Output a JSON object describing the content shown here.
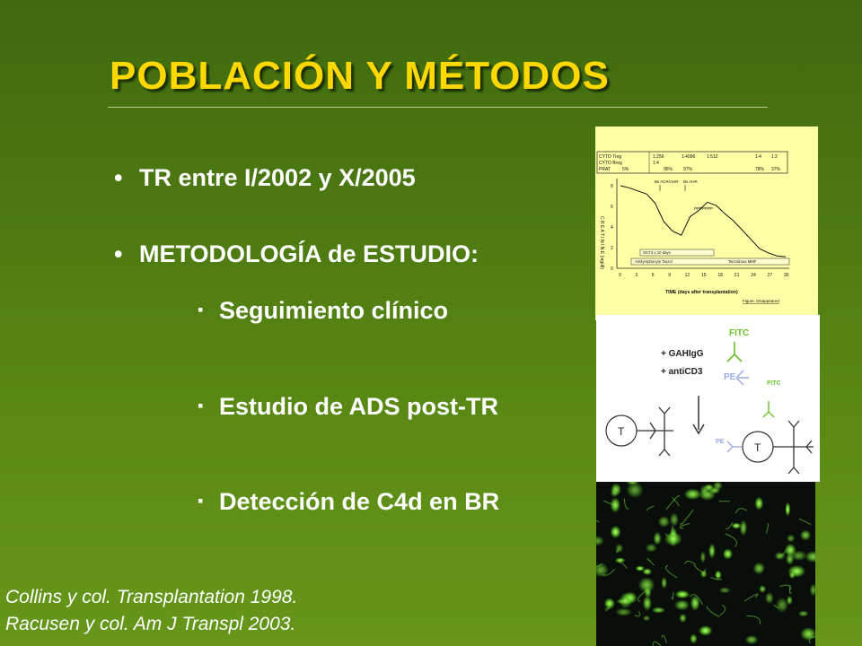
{
  "slide": {
    "title": "POBLACIÓN Y MÉTODOS",
    "bullets": [
      {
        "marker": "•",
        "text": "TR entre I/2002 y X/2005"
      },
      {
        "marker": "•",
        "text": "METODOLOGÍA de ESTUDIO:"
      }
    ],
    "sub_items": [
      {
        "marker": "▪",
        "text": "Seguimiento clínico"
      },
      {
        "marker": "▪",
        "text": "Estudio de ADS post-TR"
      },
      {
        "marker": "▪",
        "text": "Detección de C4d en BR"
      }
    ],
    "references": [
      "Collins y col. Transplantation 1998.",
      "Racusen y col. Am J Transpl 2003."
    ],
    "title_color": "#ffd800",
    "text_color": "#ffffff"
  },
  "figure_creatinine": {
    "table_rows": [
      {
        "c0": "CYTO Treg",
        "c1": "1:256",
        "c2": "1:4096",
        "c3": "1:512",
        "c4": "1:4",
        "c5": "1:2"
      },
      {
        "c0": "CYTO Breg",
        "c1": "1:4",
        "c2": "",
        "c3": "",
        "c4": "",
        "c5": ""
      },
      {
        "c0": "PRAT",
        "c1": "5%",
        "c2": "95%",
        "c3": "97%",
        "c4": "78%",
        "c5": "37%"
      }
    ],
    "ylabel": "C R E A T I N I N E   (mg/dl)",
    "y_ticks": [
      "8",
      "6",
      "4",
      "2",
      "0"
    ],
    "x_ticks": [
      "0",
      "3",
      "6",
      "9",
      "12",
      "15",
      "18",
      "21",
      "24",
      "27",
      "30"
    ],
    "xlabel": "TIME (days after transplantation)",
    "annotation_top": "Bx ACR/AHR",
    "annotation_top2": "Bx AHR",
    "annotation_plasma": "PPPPPPP",
    "treatment_bar": "Antilymphocyte    Tacrol",
    "treatment_bar2": "Tacrolimus    MMF",
    "treatment_bar_mid": "OKT3 x 10 days",
    "corner_note": "Figure. Disappeared",
    "creatinine_values": [
      8.0,
      7.8,
      7.5,
      7.2,
      6.3,
      4.5,
      3.6,
      3.2,
      5.0,
      5.6,
      6.4,
      6.1,
      5.3,
      4.6,
      3.7,
      2.8,
      1.9,
      1.5,
      1.2,
      1.1
    ]
  },
  "figure_flow": {
    "fitc_top": "FITC",
    "reagent1": "+ GAHIgG",
    "reagent2": "+ antiCD3",
    "pe_mid": "PE",
    "fitc_right": "FITC",
    "pe_bottom": "PE",
    "cell_label_left": "T",
    "cell_label_right": "T"
  },
  "figure_micrograph": {
    "description_color": "#6ad430"
  }
}
